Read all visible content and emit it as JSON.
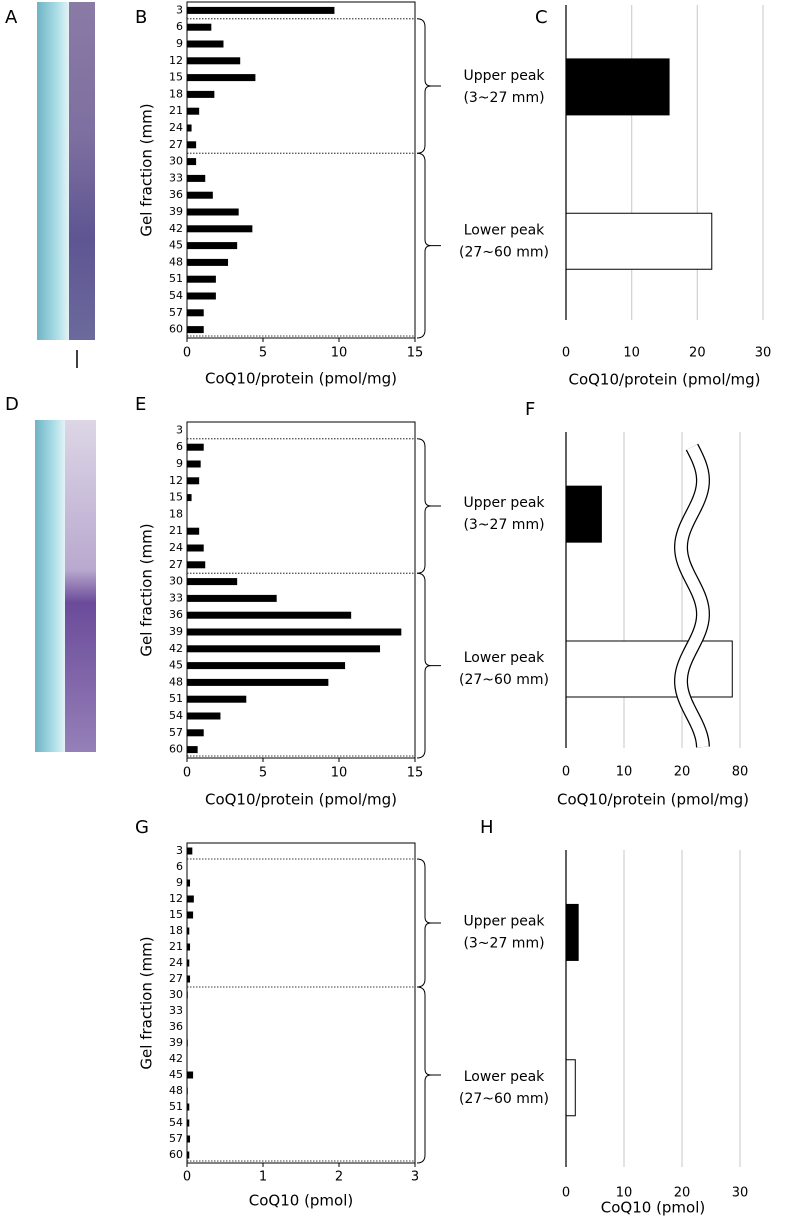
{
  "images": [
    {
      "panel": "A"
    },
    {
      "panel": "D"
    }
  ],
  "chart_data": [
    {
      "type": "hbar",
      "panel": "B",
      "ylabel": "Gel fraction (mm)",
      "xlabel": "CoQ10/protein (pmol/mg)",
      "categories": [
        "3",
        "6",
        "9",
        "12",
        "15",
        "18",
        "21",
        "24",
        "27",
        "30",
        "33",
        "36",
        "39",
        "42",
        "45",
        "48",
        "51",
        "54",
        "57",
        "60"
      ],
      "values": [
        9.7,
        1.6,
        2.4,
        3.5,
        4.5,
        1.8,
        0.8,
        0.3,
        0.6,
        0.6,
        1.2,
        1.7,
        3.4,
        4.3,
        3.3,
        2.7,
        1.9,
        1.9,
        1.1,
        1.1
      ],
      "color": "#000000",
      "xlim": [
        0,
        15
      ],
      "xticks": [
        0,
        5,
        10,
        15
      ]
    },
    {
      "type": "summary",
      "panel": "C",
      "xlabel": "CoQ10/protein (pmol/mg)",
      "categories": [
        [
          "Upper peak",
          "(3~27 mm)"
        ],
        [
          "Lower peak",
          "(27~60 mm)"
        ]
      ],
      "values": [
        15.7,
        22.2
      ],
      "colors": [
        "#000000",
        "#ffffff"
      ],
      "xlim": [
        0,
        30
      ],
      "xticks": [
        0,
        10,
        20,
        30
      ],
      "grid": true
    },
    {
      "type": "hbar",
      "panel": "E",
      "ylabel": "Gel fraction (mm)",
      "xlabel": "CoQ10/protein (pmol/mg)",
      "categories": [
        "3",
        "6",
        "9",
        "12",
        "15",
        "18",
        "21",
        "24",
        "27",
        "30",
        "33",
        "36",
        "39",
        "42",
        "45",
        "48",
        "51",
        "54",
        "57",
        "60"
      ],
      "values": [
        0,
        1.1,
        0.9,
        0.8,
        0.3,
        0,
        0.8,
        1.1,
        1.2,
        3.3,
        5.9,
        10.8,
        14.1,
        12.7,
        10.4,
        9.3,
        3.9,
        2.2,
        1.1,
        0.7
      ],
      "color": "#000000",
      "xlim": [
        0,
        15
      ],
      "xticks": [
        0,
        5,
        10,
        15
      ]
    },
    {
      "type": "summary",
      "panel": "F",
      "xlabel": "CoQ10/protein (pmol/mg)",
      "categories": [
        [
          "Upper peak",
          "(3~27 mm)"
        ],
        [
          "Lower peak",
          "(27~60 mm)"
        ]
      ],
      "values": [
        6.1,
        72
      ],
      "colors": [
        "#000000",
        "#ffffff"
      ],
      "xlim": [
        0,
        80
      ],
      "xticks": [
        0,
        10,
        20,
        80
      ],
      "grid": true,
      "axis_break": true
    },
    {
      "type": "hbar",
      "panel": "G",
      "ylabel": "Gel fraction (mm)",
      "xlabel": "CoQ10 (pmol)",
      "categories": [
        "3",
        "6",
        "9",
        "12",
        "15",
        "18",
        "21",
        "24",
        "27",
        "30",
        "33",
        "36",
        "39",
        "42",
        "45",
        "48",
        "51",
        "54",
        "57",
        "60"
      ],
      "values": [
        0.07,
        0,
        0.04,
        0.09,
        0.08,
        0.03,
        0.04,
        0.03,
        0.04,
        0.01,
        0,
        0,
        0.01,
        0,
        0.08,
        0.01,
        0.03,
        0.03,
        0.04,
        0.03
      ],
      "color": "#000000",
      "xlim": [
        0,
        3
      ],
      "xticks": [
        0,
        1,
        2,
        3
      ]
    },
    {
      "type": "summary",
      "panel": "H",
      "xlabel": "CoQ10 (pmol)",
      "categories": [
        [
          "Upper peak",
          "(3~27 mm)"
        ],
        [
          "Lower peak",
          "(27~60 mm)"
        ]
      ],
      "values": [
        2.1,
        1.6
      ],
      "colors": [
        "#000000",
        "#ffffff"
      ],
      "xlim": [
        0,
        30
      ],
      "xticks": [
        0,
        10,
        20,
        30
      ],
      "grid": true
    }
  ]
}
